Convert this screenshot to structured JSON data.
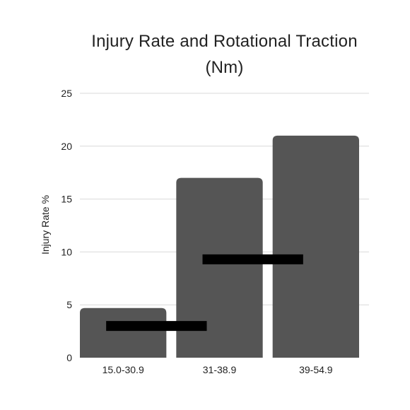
{
  "chart_data": {
    "type": "bar",
    "title_lines": [
      "Injury Rate and Rotational Traction",
      "(Nm)"
    ],
    "xlabel": "",
    "ylabel": "Injury Rate %",
    "categories": [
      "15.0-30.9",
      "31-38.9",
      "39-54.9"
    ],
    "series": [
      {
        "values": [
          4.7,
          17.0,
          21.0
        ]
      }
    ],
    "segments": [
      {
        "from": 0,
        "to": 1,
        "y": 3.0
      },
      {
        "from": 1,
        "to": 2,
        "y": 9.3
      }
    ],
    "ylim": [
      0,
      25
    ],
    "yticks": [
      0,
      5,
      10,
      15,
      20,
      25
    ],
    "grid": true,
    "legend": "none"
  },
  "colors": {
    "bar": "#555555",
    "segment": "#000000",
    "grid": "#d9d9d9",
    "text": "#222222"
  }
}
